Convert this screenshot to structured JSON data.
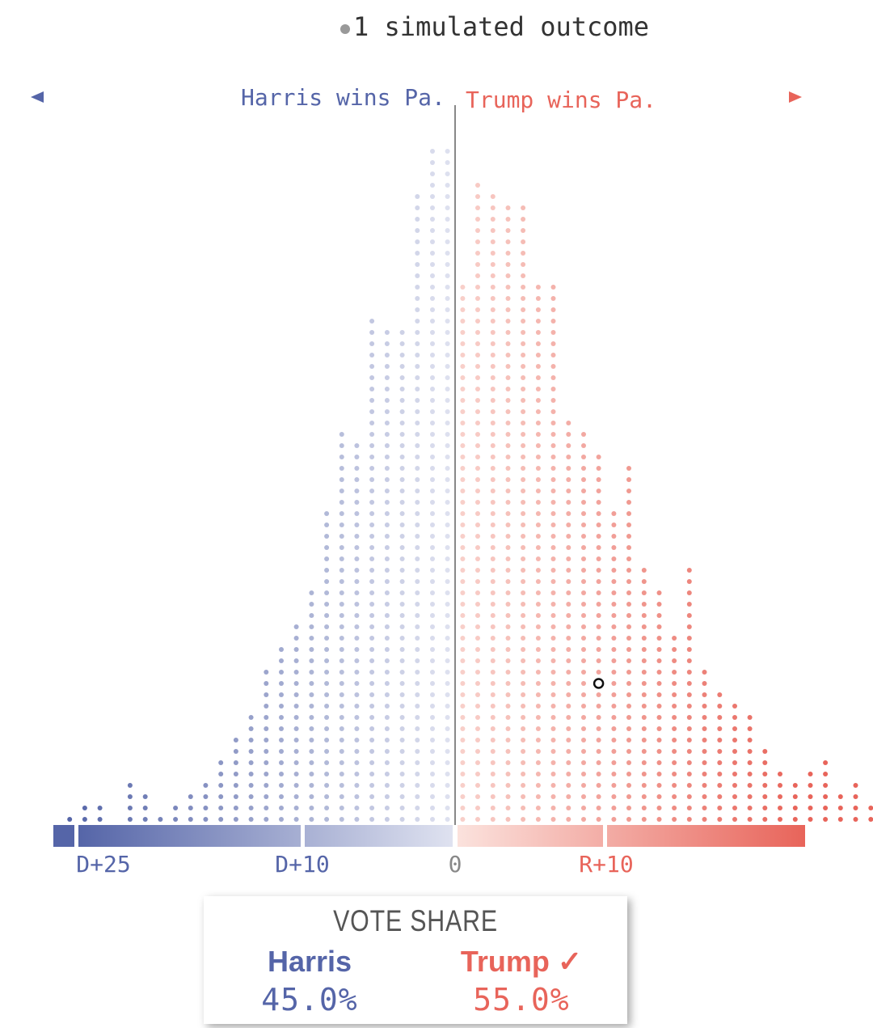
{
  "legend": {
    "label": "1 simulated outcome"
  },
  "direction_labels": {
    "left": "Harris wins Pa.",
    "right": "Trump wins Pa."
  },
  "colors": {
    "harris": "#5565a8",
    "trump": "#e8645a",
    "axis": "#888888"
  },
  "chart_data": {
    "type": "dot-histogram",
    "x_unit": "margin (percentage points, negative = Democratic, positive = Republican)",
    "xlim": [
      -26,
      23
    ],
    "xticks": [
      {
        "value": -25,
        "label": "D+25"
      },
      {
        "value": -10,
        "label": "D+10"
      },
      {
        "value": 0,
        "label": "0"
      },
      {
        "value": 10,
        "label": "R+10"
      }
    ],
    "bins": [
      {
        "x": -25,
        "count": 1
      },
      {
        "x": -24,
        "count": 2
      },
      {
        "x": -23,
        "count": 2
      },
      {
        "x": -22,
        "count": 0
      },
      {
        "x": -21,
        "count": 4
      },
      {
        "x": -20,
        "count": 3
      },
      {
        "x": -19,
        "count": 1
      },
      {
        "x": -18,
        "count": 2
      },
      {
        "x": -17,
        "count": 3
      },
      {
        "x": -16,
        "count": 4
      },
      {
        "x": -15,
        "count": 6
      },
      {
        "x": -14,
        "count": 8
      },
      {
        "x": -13,
        "count": 10
      },
      {
        "x": -12,
        "count": 14
      },
      {
        "x": -11,
        "count": 16
      },
      {
        "x": -10,
        "count": 18
      },
      {
        "x": -9,
        "count": 21
      },
      {
        "x": -8,
        "count": 28
      },
      {
        "x": -7,
        "count": 35
      },
      {
        "x": -6,
        "count": 34
      },
      {
        "x": -5,
        "count": 45
      },
      {
        "x": -4,
        "count": 44
      },
      {
        "x": -3,
        "count": 44
      },
      {
        "x": -2,
        "count": 56
      },
      {
        "x": -1,
        "count": 60
      },
      {
        "x": 0,
        "count": 60
      },
      {
        "x": 1,
        "count": 48
      },
      {
        "x": 2,
        "count": 57
      },
      {
        "x": 3,
        "count": 56
      },
      {
        "x": 4,
        "count": 55
      },
      {
        "x": 5,
        "count": 55
      },
      {
        "x": 6,
        "count": 48
      },
      {
        "x": 7,
        "count": 48
      },
      {
        "x": 8,
        "count": 36
      },
      {
        "x": 9,
        "count": 35
      },
      {
        "x": 10,
        "count": 33
      },
      {
        "x": 11,
        "count": 28
      },
      {
        "x": 12,
        "count": 32
      },
      {
        "x": 13,
        "count": 23
      },
      {
        "x": 14,
        "count": 21
      },
      {
        "x": 15,
        "count": 17
      },
      {
        "x": 16,
        "count": 23
      },
      {
        "x": 17,
        "count": 14
      },
      {
        "x": 18,
        "count": 12
      },
      {
        "x": 19,
        "count": 11
      },
      {
        "x": 20,
        "count": 10
      },
      {
        "x": 21,
        "count": 7
      },
      {
        "x": 22,
        "count": 5
      },
      {
        "x": 23,
        "count": 4
      },
      {
        "x": 24,
        "count": 5
      },
      {
        "x": 25,
        "count": 6
      },
      {
        "x": 26,
        "count": 3
      },
      {
        "x": 27,
        "count": 4
      },
      {
        "x": 28,
        "count": 2
      },
      {
        "x": 29,
        "count": 1
      },
      {
        "x": 30,
        "count": 4
      },
      {
        "x": 31,
        "count": 3
      },
      {
        "x": 32,
        "count": 2
      },
      {
        "x": 33,
        "count": 1
      }
    ],
    "highlighted_outcome": {
      "x": 9.5,
      "label": "Trump +10"
    }
  },
  "vote_share": {
    "title": "VOTE SHARE",
    "harris": {
      "name": "Harris",
      "value": "45.0%"
    },
    "trump": {
      "name": "Trump",
      "check": "✓",
      "value": "55.0%"
    }
  }
}
